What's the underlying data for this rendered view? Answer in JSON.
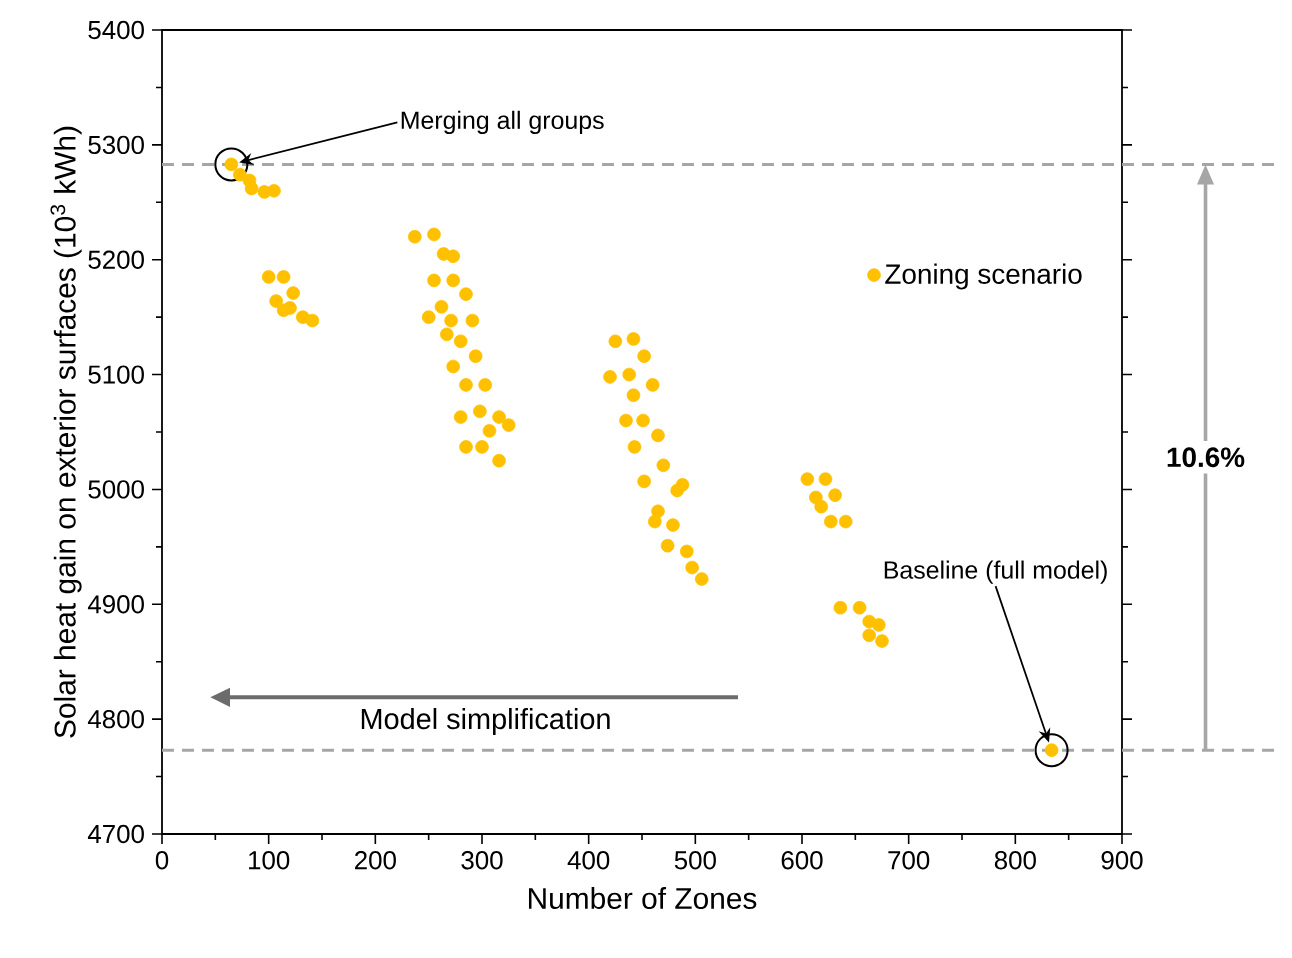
{
  "chart_data": {
    "type": "scatter",
    "xlabel": "Number of Zones",
    "ylabel": "Solar heat gain on exterior surfaces (10$^{3}$ kWh)",
    "xlim": [
      0,
      900
    ],
    "ylim": [
      4700,
      5400
    ],
    "xticks": [
      0,
      100,
      200,
      300,
      400,
      500,
      600,
      700,
      800,
      900
    ],
    "yticks": [
      4700,
      4800,
      4900,
      5000,
      5100,
      5200,
      5300,
      5400
    ],
    "marker": "circle",
    "legend": "top right",
    "series": [
      {
        "name": "Zoning scenario",
        "color": "#ffc000",
        "x": [
          65,
          73,
          82,
          84,
          96,
          105,
          100,
          114,
          123,
          107,
          120,
          132,
          141,
          114,
          237,
          255,
          264,
          273,
          255,
          273,
          285,
          262,
          250,
          271,
          291,
          267,
          280,
          273,
          294,
          285,
          303,
          280,
          298,
          316,
          325,
          285,
          300,
          316,
          307,
          425,
          442,
          452,
          420,
          438,
          460,
          442,
          435,
          451,
          465,
          443,
          470,
          452,
          488,
          465,
          479,
          474,
          492,
          497,
          506,
          483,
          462,
          605,
          622,
          613,
          631,
          618,
          627,
          641,
          636,
          654,
          663,
          672,
          663,
          675,
          834
        ],
        "values": [
          5283,
          5274,
          5269,
          5262,
          5259,
          5260,
          5185,
          5185,
          5171,
          5164,
          5158,
          5150,
          5147,
          5156,
          5220,
          5222,
          5205,
          5203,
          5182,
          5182,
          5170,
          5159,
          5150,
          5147,
          5147,
          5135,
          5129,
          5107,
          5116,
          5091,
          5091,
          5063,
          5068,
          5063,
          5056,
          5037,
          5037,
          5025,
          5051,
          5129,
          5131,
          5116,
          5098,
          5100,
          5091,
          5082,
          5060,
          5060,
          5047,
          5037,
          5021,
          5007,
          5004,
          4981,
          4969,
          4951,
          4946,
          4932,
          4922,
          4999,
          4972,
          5009,
          5009,
          4993,
          4995,
          4985,
          4972,
          4972,
          4897,
          4897,
          4885,
          4882,
          4873,
          4868,
          4773
        ]
      }
    ],
    "ref_lines": [
      {
        "axis": "y",
        "value": 5283,
        "color": "#a6a6a6",
        "line_style": "dashed"
      },
      {
        "axis": "y",
        "value": 4773,
        "color": "#a6a6a6",
        "line_style": "dashed"
      }
    ],
    "annotations": [
      {
        "text": "Merging all groups",
        "x": 65,
        "y": 5283
      },
      {
        "text": "Baseline (full model)",
        "x": 834,
        "y": 4773
      },
      "Model simplification",
      "10.6%"
    ]
  }
}
